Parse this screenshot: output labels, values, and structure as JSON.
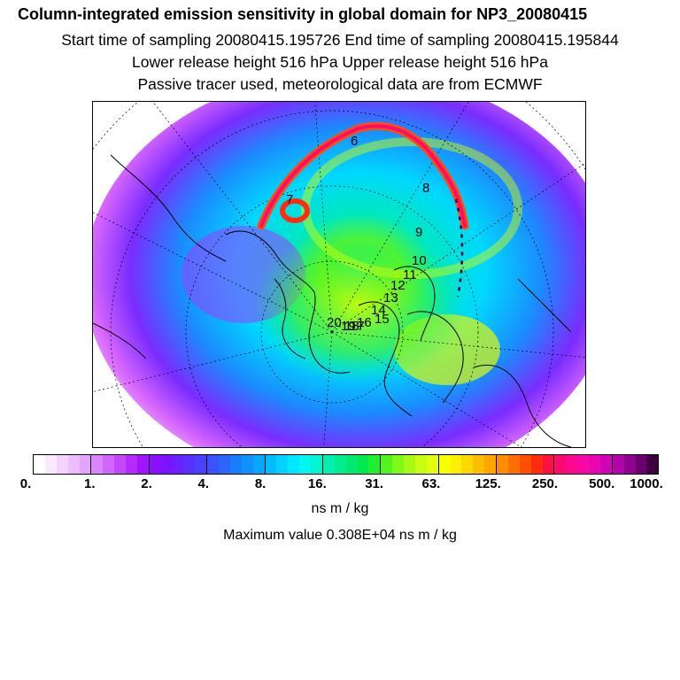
{
  "header": {
    "title": "Column-integrated emission sensitivity in global domain for NP3_20080415",
    "sampling": "Start time of sampling 20080415.195726      End time of sampling 20080415.195844",
    "release": "Lower release height  516 hPa        Upper release height  516 hPa",
    "note": "Passive tracer used, meteorological data are from ECMWF"
  },
  "map": {
    "track_labels": [
      "6",
      "7",
      "8",
      "9",
      "10",
      "11",
      "12",
      "13",
      "14",
      "15",
      "16",
      "17",
      "18",
      "19",
      "20"
    ]
  },
  "colorbar": {
    "colors": [
      "#ffffff",
      "#fbe9ff",
      "#f5d3ff",
      "#eebdff",
      "#e6a3ff",
      "#dc85ff",
      "#d066ff",
      "#c247ff",
      "#b32bff",
      "#a114ff",
      "#8a10ff",
      "#7814ff",
      "#6a22ff",
      "#5a30ff",
      "#4a40ff",
      "#3a52ff",
      "#2a66ff",
      "#1a7cff",
      "#0f92ff",
      "#06a8ff",
      "#00bdff",
      "#00d3ff",
      "#00e8ff",
      "#00f7f0",
      "#00f5d0",
      "#00f0b0",
      "#00ec90",
      "#00e870",
      "#00e850",
      "#1ef030",
      "#52f420",
      "#80f818",
      "#a8fa14",
      "#c8fc10",
      "#e2fe0a",
      "#f6ff04",
      "#ffef00",
      "#ffd800",
      "#ffbf00",
      "#ffa600",
      "#ff8c00",
      "#ff6e00",
      "#ff5000",
      "#ff2c10",
      "#ff1040",
      "#ff0a70",
      "#ff0890",
      "#f908a6",
      "#e808b2",
      "#d006b6",
      "#b204aa",
      "#8e0290",
      "#6a0070",
      "#3e0040"
    ],
    "tick_labels": [
      "0.",
      "1.",
      "2.",
      "4.",
      "8.",
      "16.",
      "31.",
      "63.",
      "125.",
      "250.",
      "500.",
      "1000."
    ],
    "unit": "ns m / kg",
    "max_value": "Maximum value  0.308E+04 ns m / kg"
  }
}
